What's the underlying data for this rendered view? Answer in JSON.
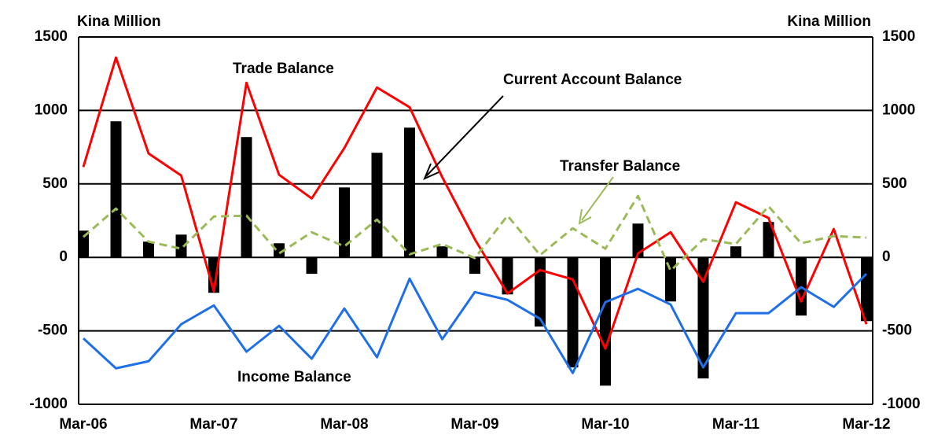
{
  "chart_data": {
    "type": "combo",
    "y_label": "Kina Million",
    "y2_label": "Kina Million",
    "categories": [
      "Mar-06",
      null,
      null,
      null,
      "Mar-07",
      null,
      null,
      null,
      "Mar-08",
      null,
      null,
      null,
      "Mar-09",
      null,
      null,
      null,
      "Mar-10",
      null,
      null,
      null,
      "Mar-11",
      null,
      null,
      null,
      "Mar-12"
    ],
    "ylim": [
      -1000,
      1500
    ],
    "yticks": [
      -1000,
      -500,
      0,
      500,
      1000,
      1500
    ],
    "y2lim": [
      -1000,
      1500
    ],
    "y2ticks": [
      -1000,
      -500,
      0,
      500,
      1000,
      1500
    ],
    "grid": true,
    "series": [
      {
        "name": "Current Account Balance",
        "type": "bar",
        "color": "#000000",
        "values": [
          182,
          926,
          107,
          155,
          -241,
          819,
          96,
          -112,
          476,
          712,
          883,
          75,
          -112,
          -252,
          -471,
          -749,
          -873,
          230,
          -300,
          -824,
          75,
          241,
          -396,
          5,
          -434
        ]
      },
      {
        "name": "Trade Balance",
        "type": "line",
        "color": "#ff0000",
        "values": [
          615,
          1360,
          707,
          557,
          -230,
          1188,
          562,
          401,
          744,
          1156,
          1022,
          546,
          123,
          -246,
          -86,
          -150,
          -621,
          27,
          171,
          -166,
          375,
          268,
          -300,
          193,
          -455
        ]
      },
      {
        "name": "Transfer Balance",
        "type": "line",
        "dashed": true,
        "color": "#9bbb59",
        "values": [
          139,
          332,
          107,
          59,
          278,
          284,
          27,
          171,
          75,
          257,
          21,
          91,
          -5,
          284,
          16,
          198,
          59,
          418,
          -91,
          123,
          91,
          348,
          96,
          145,
          134
        ]
      },
      {
        "name": "Income Balance",
        "type": "line",
        "color": "#1f6fe8",
        "values": [
          -551,
          -755,
          -707,
          -455,
          -327,
          -642,
          -466,
          -690,
          -348,
          -680,
          -145,
          -557,
          -236,
          -289,
          -418,
          -787,
          -305,
          -214,
          -321,
          -749,
          -380,
          -380,
          -203,
          -337,
          -112
        ]
      }
    ]
  }
}
